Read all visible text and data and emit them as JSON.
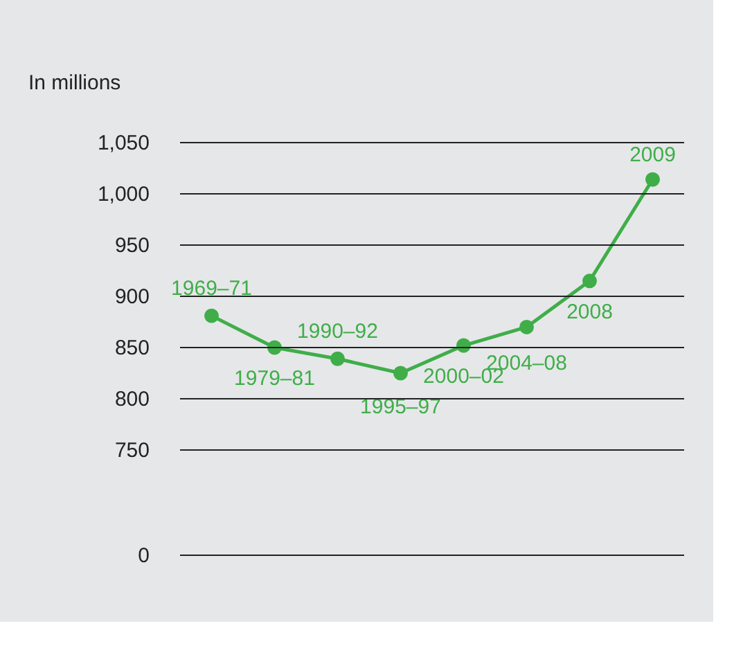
{
  "chart_data": {
    "type": "line",
    "ylabel": "In millions",
    "categories": [
      "1969–71",
      "1979–81",
      "1990–92",
      "1995–97",
      "2000–02",
      "2004–08",
      "2008",
      "2009"
    ],
    "series": [
      {
        "color": "#3fae49",
        "values": [
          881,
          850,
          839,
          825,
          852,
          870,
          915,
          1014
        ]
      }
    ],
    "ylim": [
      750,
      1050
    ],
    "yticks": [
      750,
      800,
      850,
      900,
      950,
      {
        "value": 1000,
        "label": "1,000"
      },
      {
        "value": 1050,
        "label": "1,050"
      }
    ],
    "annotations": [
      "0"
    ],
    "grid": "y",
    "marker": "circle",
    "line_style": "solid",
    "tick_labels": "y"
  }
}
